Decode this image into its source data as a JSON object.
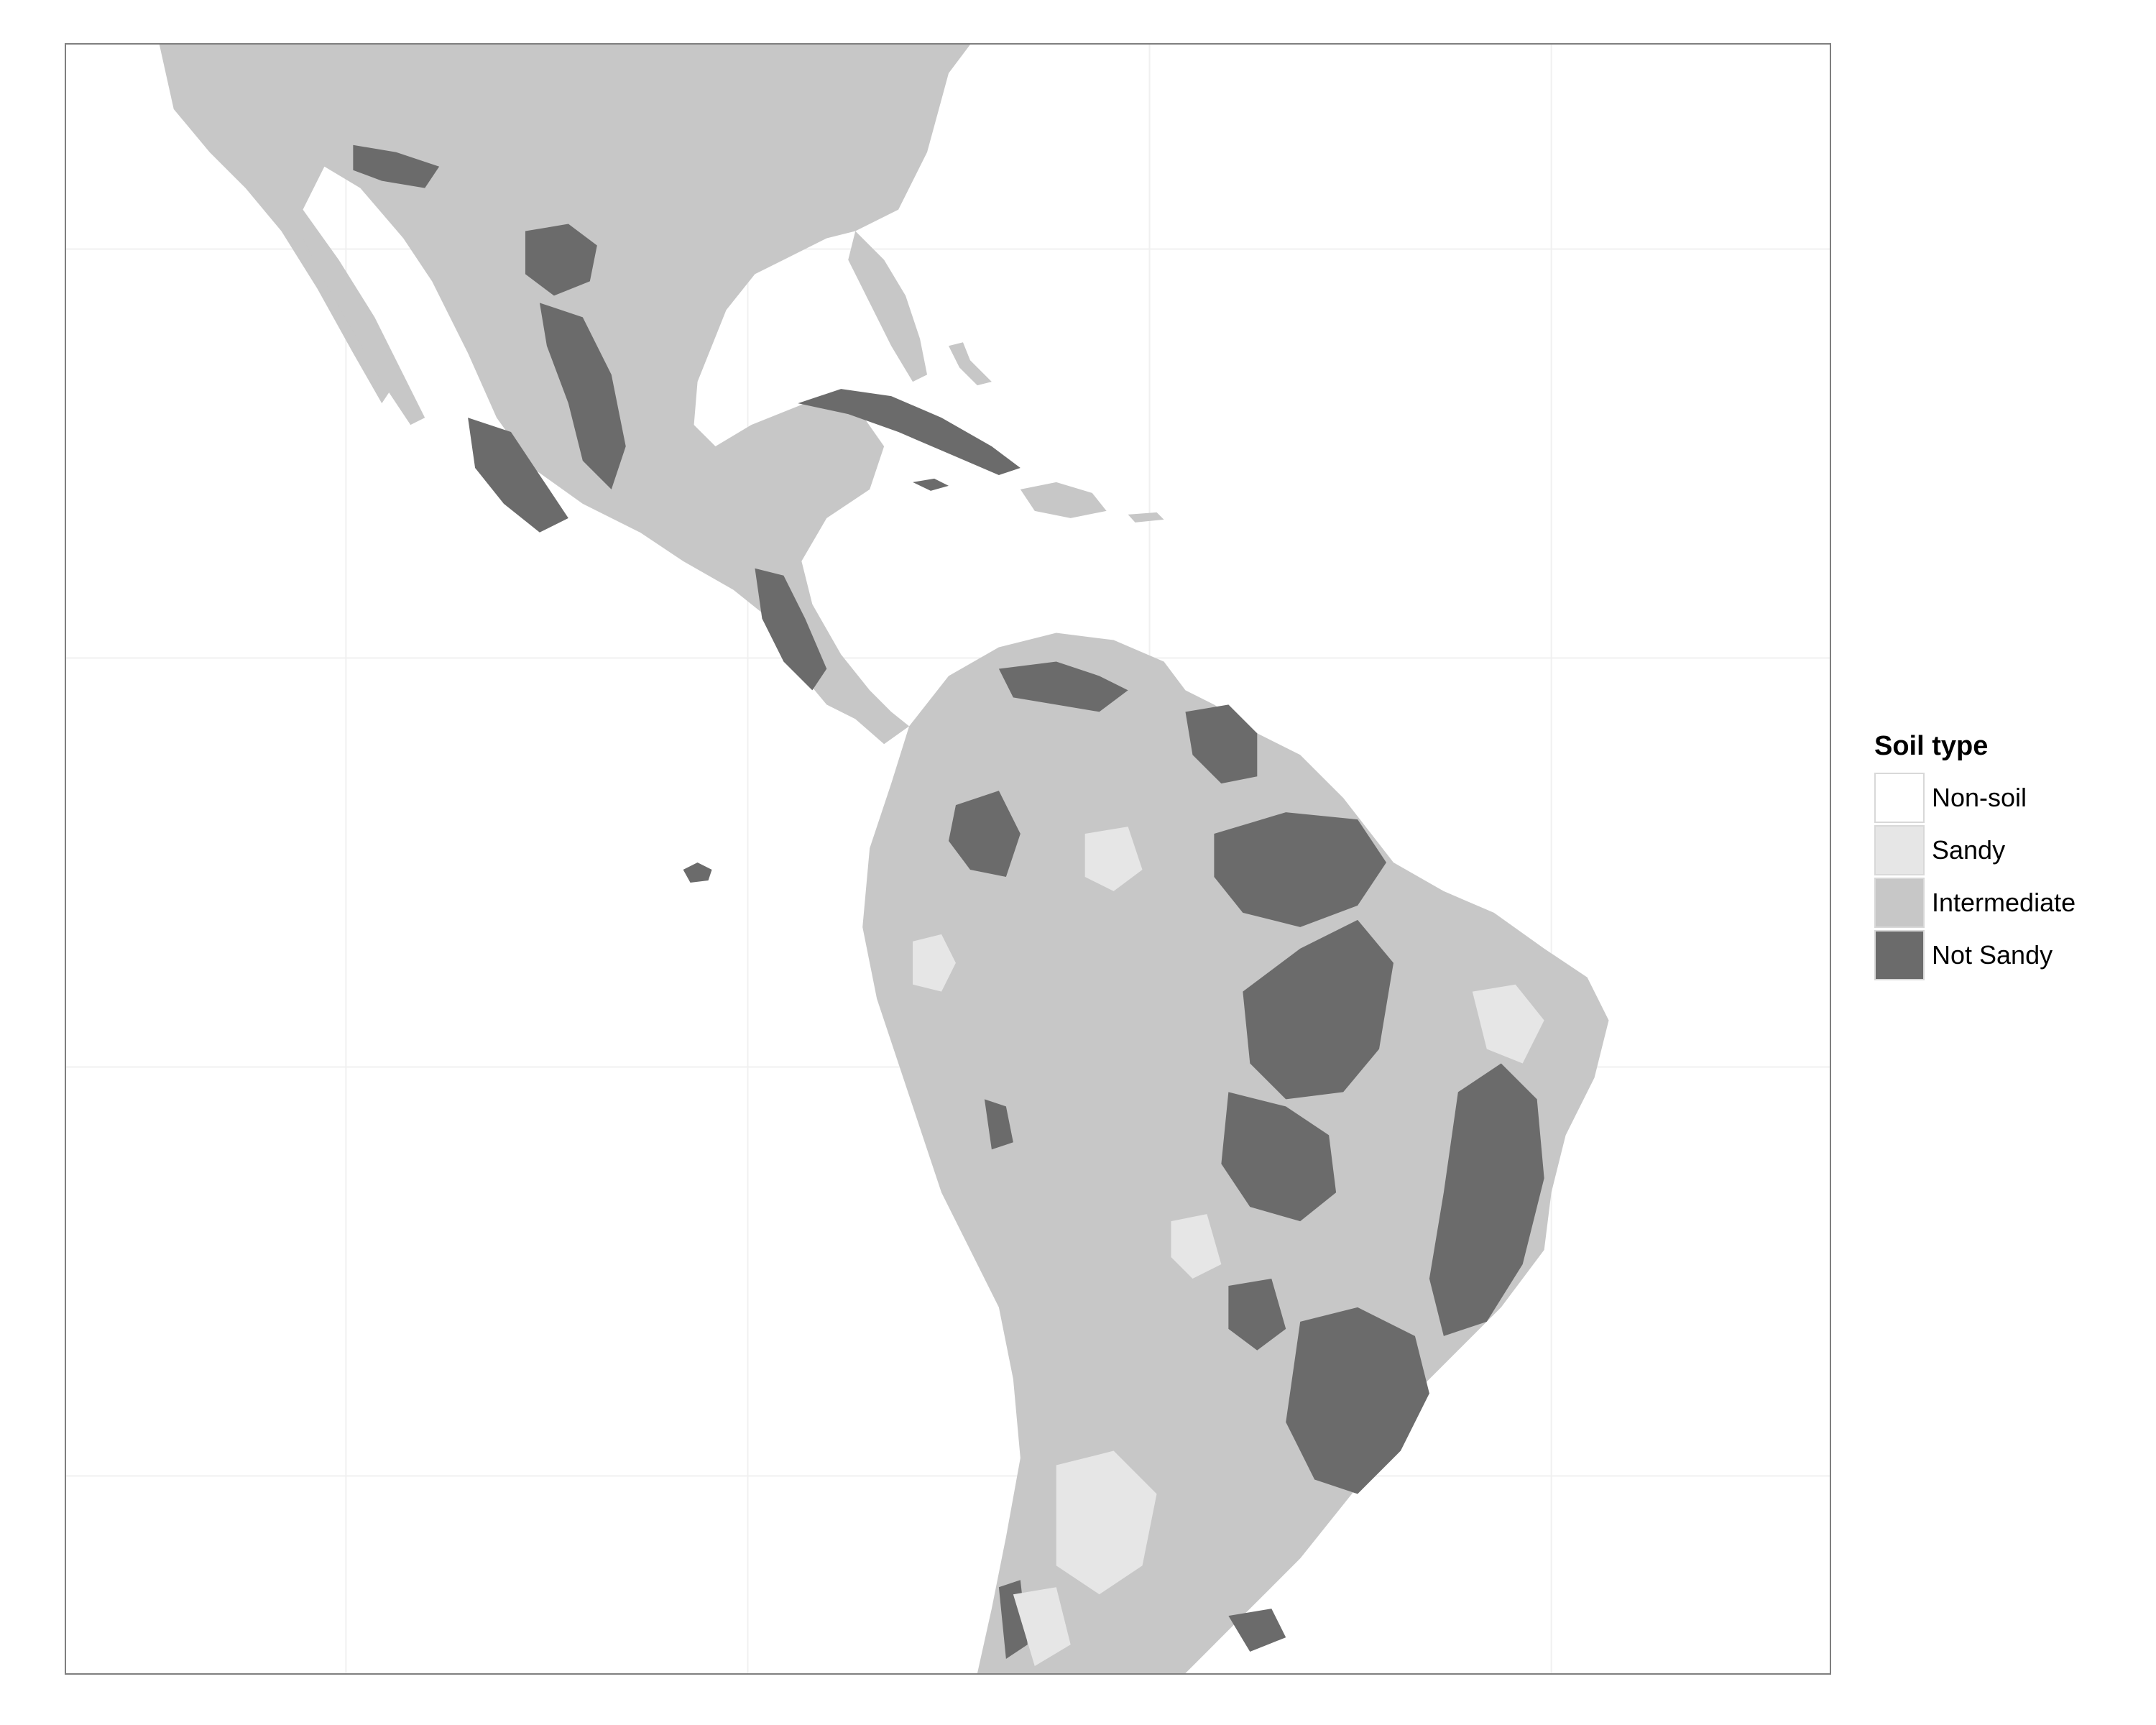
{
  "legend": {
    "title": "Soil type",
    "items": [
      {
        "label": "Non-soil",
        "color": "#ffffff"
      },
      {
        "label": "Sandy",
        "color": "#e6e6e6"
      },
      {
        "label": "Intermediate",
        "color": "#c7c7c7"
      },
      {
        "label": "Not Sandy",
        "color": "#6b6b6b"
      }
    ]
  },
  "colors": {
    "frame": "#7f7f7f",
    "grid": "#f2f2f2",
    "ocean": "#ffffff"
  }
}
